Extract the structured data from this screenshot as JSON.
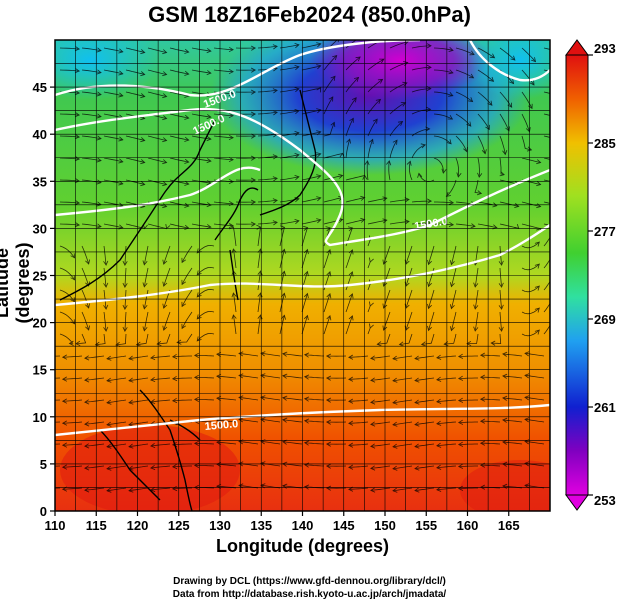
{
  "chart_data": {
    "type": "heatmap",
    "title": "GSM 18Z16Feb2024 (850.0hPa)",
    "xlabel": "Longitude (degrees)",
    "ylabel": "Latitude  (degrees)",
    "xlim": [
      110,
      170
    ],
    "ylim": [
      0,
      50
    ],
    "x_ticks": [
      110,
      115,
      120,
      125,
      130,
      135,
      140,
      145,
      150,
      155,
      160,
      165
    ],
    "y_ticks": [
      0,
      5,
      10,
      15,
      20,
      25,
      30,
      35,
      40,
      45
    ],
    "grid": true,
    "field": "temperature",
    "colorbar": {
      "min": 253,
      "max": 293,
      "tick_values": [
        253,
        261,
        269,
        277,
        285,
        293
      ],
      "tick_labels": [
        "253",
        "261",
        "269",
        "277",
        "285",
        "293"
      ]
    },
    "contour_labels": [
      "1500.0",
      "1500.0",
      "1500.0",
      "1500.0"
    ],
    "overlay": "streamlines"
  },
  "credits": {
    "line1": "Drawing by DCL (https://www.gfd-dennou.org/library/dcl/)",
    "line2": "Data from http://database.rish.kyoto-u.ac.jp/arch/jmadata/"
  },
  "colors": {
    "cold": "#c000c0",
    "cool": "#1030d0",
    "mild": "#30c030",
    "warm": "#f0a000",
    "hot": "#e02000",
    "contour": "#ffffff"
  }
}
